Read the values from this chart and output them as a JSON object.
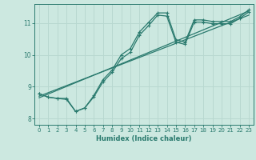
{
  "xlabel": "Humidex (Indice chaleur)",
  "bg_color": "#cce8e0",
  "grid_color": "#b8d8d0",
  "line_color": "#2a7a6e",
  "xlim": [
    -0.5,
    23.5
  ],
  "ylim": [
    7.8,
    11.6
  ],
  "yticks": [
    8,
    9,
    10,
    11
  ],
  "xticks": [
    0,
    1,
    2,
    3,
    4,
    5,
    6,
    7,
    8,
    9,
    10,
    11,
    12,
    13,
    14,
    15,
    16,
    17,
    18,
    19,
    20,
    21,
    22,
    23
  ],
  "line1_x": [
    0,
    1,
    2,
    3,
    4,
    5,
    6,
    7,
    8,
    9,
    10,
    11,
    12,
    13,
    14,
    15,
    16,
    17,
    18,
    19,
    20,
    21,
    22,
    23
  ],
  "line1_y": [
    8.78,
    8.67,
    8.63,
    8.63,
    8.22,
    8.33,
    8.72,
    9.22,
    9.52,
    10.0,
    10.2,
    10.72,
    11.02,
    11.32,
    11.32,
    10.48,
    10.4,
    11.1,
    11.1,
    11.05,
    11.05,
    11.05,
    11.2,
    11.42
  ],
  "line2_x": [
    0,
    1,
    2,
    3,
    4,
    5,
    6,
    7,
    8,
    9,
    10,
    11,
    12,
    13,
    14,
    15,
    16,
    17,
    18,
    19,
    20,
    21,
    22,
    23
  ],
  "line2_y": [
    8.78,
    8.67,
    8.63,
    8.6,
    8.22,
    8.33,
    8.68,
    9.15,
    9.45,
    9.88,
    10.08,
    10.62,
    10.92,
    11.25,
    11.22,
    10.4,
    10.33,
    11.03,
    11.03,
    10.98,
    10.98,
    10.98,
    11.15,
    11.35
  ],
  "line3_x": [
    0,
    23
  ],
  "line3_y": [
    8.7,
    11.25
  ],
  "line4_x": [
    0,
    23
  ],
  "line4_y": [
    8.65,
    11.38
  ]
}
